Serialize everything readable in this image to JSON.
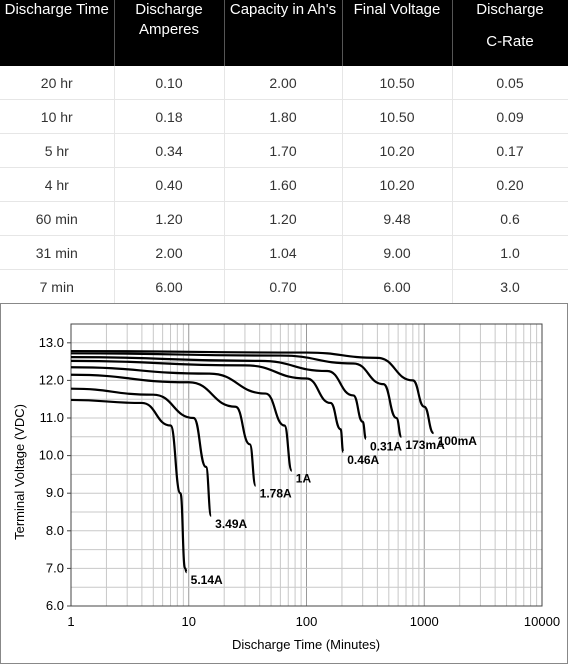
{
  "table": {
    "headers": [
      {
        "line1": "Discharge Time",
        "line2": ""
      },
      {
        "line1": "Discharge",
        "line2": "Amperes"
      },
      {
        "line1": "Capacity in Ah's",
        "line2": ""
      },
      {
        "line1": "Final Voltage",
        "line2": ""
      },
      {
        "line1": "Discharge",
        "line2": "C-Rate"
      }
    ],
    "rows": [
      [
        "20 hr",
        "0.10",
        "2.00",
        "10.50",
        "0.05"
      ],
      [
        "10 hr",
        "0.18",
        "1.80",
        "10.50",
        "0.09"
      ],
      [
        "5 hr",
        "0.34",
        "1.70",
        "10.20",
        "0.17"
      ],
      [
        "4 hr",
        "0.40",
        "1.60",
        "10.20",
        "0.20"
      ],
      [
        "60 min",
        "1.20",
        "1.20",
        "9.48",
        "0.6"
      ],
      [
        "31 min",
        "2.00",
        "1.04",
        "9.00",
        "1.0"
      ],
      [
        "7 min",
        "6.00",
        "0.70",
        "6.00",
        "3.0"
      ]
    ]
  },
  "chart_data": {
    "type": "line",
    "xlabel": "Discharge Time (Minutes)",
    "ylabel": "Terminal Voltage (VDC)",
    "xscale": "log",
    "xlim": [
      1,
      10000
    ],
    "ylim": [
      6.0,
      13.5
    ],
    "xticks": [
      "1",
      "10",
      "100",
      "1000",
      "10000"
    ],
    "yticks": [
      "6.0",
      "7.0",
      "8.0",
      "9.0",
      "10.0",
      "11.0",
      "12.0",
      "13.0"
    ],
    "grid": true,
    "series": [
      {
        "name": "100mA",
        "points": [
          [
            1,
            12.78
          ],
          [
            100,
            12.74
          ],
          [
            400,
            12.6
          ],
          [
            800,
            12.0
          ],
          [
            1000,
            11.3
          ],
          [
            1200,
            10.6
          ]
        ]
      },
      {
        "name": "173mA",
        "points": [
          [
            1,
            12.72
          ],
          [
            60,
            12.66
          ],
          [
            250,
            12.45
          ],
          [
            450,
            11.9
          ],
          [
            580,
            11.0
          ],
          [
            640,
            10.5
          ]
        ]
      },
      {
        "name": "0.31A",
        "points": [
          [
            1,
            12.62
          ],
          [
            40,
            12.52
          ],
          [
            150,
            12.25
          ],
          [
            250,
            11.6
          ],
          [
            300,
            10.9
          ],
          [
            320,
            10.45
          ]
        ]
      },
      {
        "name": "0.46A",
        "points": [
          [
            1,
            12.52
          ],
          [
            30,
            12.4
          ],
          [
            100,
            12.05
          ],
          [
            160,
            11.4
          ],
          [
            195,
            10.7
          ],
          [
            205,
            10.1
          ]
        ]
      },
      {
        "name": "1A",
        "points": [
          [
            1,
            12.35
          ],
          [
            15,
            12.18
          ],
          [
            45,
            11.65
          ],
          [
            65,
            10.8
          ],
          [
            75,
            9.6
          ]
        ]
      },
      {
        "name": "1.78A",
        "points": [
          [
            1,
            12.15
          ],
          [
            10,
            11.95
          ],
          [
            25,
            11.3
          ],
          [
            33,
            10.3
          ],
          [
            37,
            9.2
          ]
        ]
      },
      {
        "name": "3.49A",
        "points": [
          [
            1,
            11.78
          ],
          [
            5,
            11.62
          ],
          [
            11,
            11.0
          ],
          [
            14,
            9.7
          ],
          [
            15.5,
            8.4
          ]
        ]
      },
      {
        "name": "5.14A",
        "points": [
          [
            1,
            11.48
          ],
          [
            4,
            11.4
          ],
          [
            7,
            10.8
          ],
          [
            8.5,
            9.0
          ],
          [
            9.3,
            7.0
          ],
          [
            9.6,
            6.9
          ]
        ]
      }
    ],
    "curve_labels": [
      "100mA",
      "173mA",
      "0.31A",
      "0.46A",
      "1A",
      "1.78A",
      "3.49A",
      "5.14A"
    ]
  }
}
